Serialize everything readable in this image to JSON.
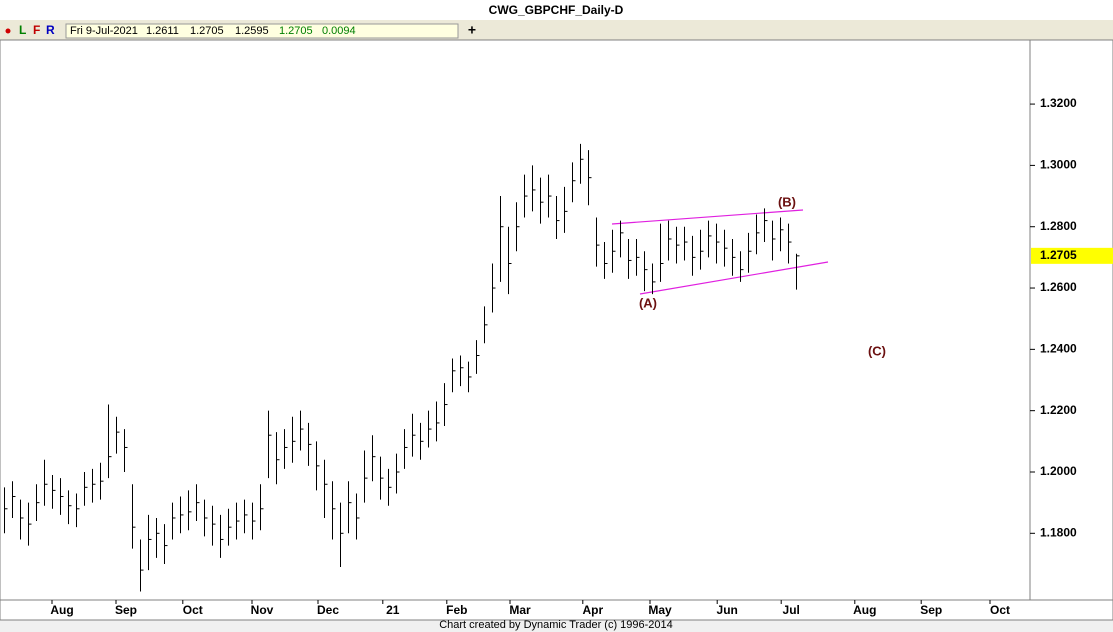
{
  "title": "CWG_GBPCHF_Daily-D",
  "toolbar": {
    "buttons": [
      "L",
      "F",
      "R"
    ],
    "date": "Fri 9-Jul-2021",
    "values": [
      "1.2611",
      "1.2705",
      "1.2595"
    ],
    "change_values": [
      "1.2705",
      "0.0094"
    ]
  },
  "footer": "Chart created by Dynamic Trader  (c) 1996-2014",
  "chart_data": {
    "type": "ohlc",
    "color": "#000000",
    "xlim": [
      0,
      128.75
    ],
    "xticks": [
      {
        "value": 7.75,
        "label": "Aug"
      },
      {
        "value": 15.75,
        "label": "Sep"
      },
      {
        "value": 24.1,
        "label": "Oct"
      },
      {
        "value": 32.75,
        "label": "Nov"
      },
      {
        "value": 41,
        "label": "Dec"
      },
      {
        "value": 49.1,
        "label": "21"
      },
      {
        "value": 57.1,
        "label": "Feb"
      },
      {
        "value": 65,
        "label": "Mar"
      },
      {
        "value": 74.1,
        "label": "Apr"
      },
      {
        "value": 82.5,
        "label": "May"
      },
      {
        "value": 90.9,
        "label": "Jun"
      },
      {
        "value": 98.9,
        "label": "Jul"
      },
      {
        "value": 108.1,
        "label": "Aug"
      },
      {
        "value": 116.4,
        "label": "Sep"
      },
      {
        "value": 125,
        "label": "Oct"
      }
    ],
    "ylim": [
      1.1589,
      1.3409
    ],
    "yticks": [
      {
        "value": 1.18,
        "label": "1.1800"
      },
      {
        "value": 1.2,
        "label": "1.2000"
      },
      {
        "value": 1.22,
        "label": "1.2200"
      },
      {
        "value": 1.24,
        "label": "1.2400"
      },
      {
        "value": 1.26,
        "label": "1.2600"
      },
      {
        "value": 1.28,
        "label": "1.2800"
      },
      {
        "value": 1.3,
        "label": "1.3000"
      },
      {
        "value": 1.32,
        "label": "1.3200"
      }
    ],
    "last_value": {
      "value": 1.2705,
      "label": "1.2705",
      "color": "#ffff00"
    },
    "annotations": [
      "(A)",
      "(B)",
      "(C)"
    ],
    "high": [
      1.195,
      1.197,
      1.191,
      1.19,
      1.196,
      1.204,
      1.199,
      1.198,
      1.194,
      1.193,
      1.2,
      1.201,
      1.203,
      1.222,
      1.218,
      1.214,
      1.196,
      1.178,
      1.186,
      1.185,
      1.183,
      1.19,
      1.192,
      1.194,
      1.196,
      1.191,
      1.189,
      1.186,
      1.188,
      1.19,
      1.191,
      1.19,
      1.196,
      1.22,
      1.213,
      1.214,
      1.218,
      1.22,
      1.216,
      1.21,
      1.204,
      1.197,
      1.19,
      1.197,
      1.193,
      1.207,
      1.212,
      1.205,
      1.201,
      1.206,
      1.214,
      1.219,
      1.216,
      1.22,
      1.223,
      1.229,
      1.237,
      1.238,
      1.236,
      1.243,
      1.254,
      1.268,
      1.29,
      1.28,
      1.288,
      1.297,
      1.3,
      1.296,
      1.297,
      1.29,
      1.293,
      1.301,
      1.307,
      1.305,
      1.283,
      1.275,
      1.279,
      1.282,
      1.276,
      1.276,
      1.272,
      1.268,
      1.281,
      1.282,
      1.28,
      1.28,
      1.277,
      1.279,
      1.282,
      1.281,
      1.279,
      1.276,
      1.272,
      1.278,
      1.284,
      1.286,
      1.282,
      1.283,
      1.281,
      1.2712
    ],
    "low": [
      1.18,
      1.185,
      1.178,
      1.176,
      1.184,
      1.189,
      1.188,
      1.186,
      1.183,
      1.182,
      1.189,
      1.19,
      1.191,
      1.198,
      1.206,
      1.2,
      1.175,
      1.161,
      1.168,
      1.172,
      1.17,
      1.178,
      1.18,
      1.181,
      1.184,
      1.179,
      1.176,
      1.172,
      1.176,
      1.178,
      1.18,
      1.178,
      1.181,
      1.198,
      1.196,
      1.201,
      1.203,
      1.207,
      1.202,
      1.194,
      1.185,
      1.178,
      1.169,
      1.18,
      1.178,
      1.19,
      1.197,
      1.191,
      1.189,
      1.193,
      1.201,
      1.205,
      1.204,
      1.208,
      1.21,
      1.215,
      1.226,
      1.228,
      1.226,
      1.232,
      1.242,
      1.252,
      1.262,
      1.258,
      1.272,
      1.283,
      1.285,
      1.281,
      1.283,
      1.276,
      1.278,
      1.288,
      1.294,
      1.287,
      1.267,
      1.263,
      1.265,
      1.27,
      1.263,
      1.264,
      1.259,
      1.258,
      1.262,
      1.269,
      1.268,
      1.269,
      1.264,
      1.266,
      1.27,
      1.268,
      1.267,
      1.264,
      1.262,
      1.265,
      1.271,
      1.275,
      1.269,
      1.272,
      1.268,
      1.2595
    ],
    "close": [
      1.188,
      1.192,
      1.185,
      1.183,
      1.19,
      1.196,
      1.194,
      1.192,
      1.189,
      1.188,
      1.195,
      1.196,
      1.197,
      1.205,
      1.213,
      1.208,
      1.182,
      1.168,
      1.178,
      1.18,
      1.176,
      1.185,
      1.186,
      1.187,
      1.19,
      1.185,
      1.183,
      1.178,
      1.182,
      1.184,
      1.186,
      1.184,
      1.188,
      1.212,
      1.204,
      1.208,
      1.21,
      1.214,
      1.209,
      1.202,
      1.196,
      1.188,
      1.18,
      1.19,
      1.185,
      1.198,
      1.205,
      1.198,
      1.195,
      1.2,
      1.208,
      1.212,
      1.21,
      1.214,
      1.216,
      1.222,
      1.233,
      1.234,
      1.231,
      1.238,
      1.248,
      1.26,
      1.28,
      1.268,
      1.28,
      1.29,
      1.292,
      1.288,
      1.29,
      1.282,
      1.285,
      1.295,
      1.302,
      1.296,
      1.274,
      1.268,
      1.272,
      1.278,
      1.269,
      1.27,
      1.266,
      1.262,
      1.268,
      1.276,
      1.274,
      1.275,
      1.27,
      1.272,
      1.277,
      1.275,
      1.273,
      1.27,
      1.266,
      1.272,
      1.278,
      1.282,
      1.276,
      1.279,
      1.275,
      1.2705
    ]
  }
}
